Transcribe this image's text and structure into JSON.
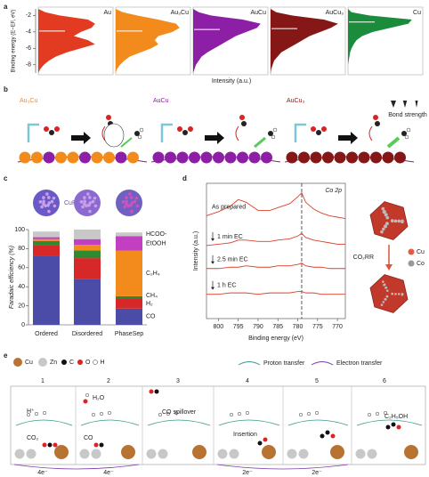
{
  "panel_labels": [
    "a",
    "b",
    "c",
    "d",
    "e"
  ],
  "chart_data": [
    {
      "type": "area",
      "y_label": "Binding energy (E−EF, eV)",
      "x_label": "Intensity (a.u.)",
      "y": [
        -1.2,
        -1.6,
        -2,
        -2.5,
        -3,
        -3.5,
        -4,
        -4.5,
        -5,
        -5.5,
        -6,
        -6.5,
        -7,
        -7.5,
        -8,
        -8.5,
        -9
      ],
      "xlim": [
        0,
        1
      ],
      "ylim": [
        -1.2,
        -9
      ],
      "yticks": [
        -2,
        -4,
        -6,
        -8
      ],
      "series": [
        {
          "name": "Au",
          "color": "#e23b22",
          "d_band_center": -3.9,
          "values": [
            0,
            0.1,
            0.3,
            0.7,
            0.8,
            0.75,
            0.6,
            0.5,
            0.7,
            0.8,
            0.6,
            0.4,
            0.25,
            0.15,
            0.08,
            0.03,
            0
          ]
        },
        {
          "name": "Au₃Cu",
          "color": "#f28a1c",
          "d_band_center": -3.9,
          "values": [
            0,
            0.1,
            0.3,
            0.6,
            0.85,
            0.9,
            0.8,
            0.6,
            0.55,
            0.6,
            0.5,
            0.35,
            0.2,
            0.12,
            0.06,
            0.02,
            0
          ]
        },
        {
          "name": "AuCu",
          "color": "#8c1fa6",
          "d_band_center": -3.7,
          "values": [
            0,
            0.08,
            0.25,
            0.7,
            0.95,
            0.9,
            0.75,
            0.6,
            0.5,
            0.4,
            0.3,
            0.2,
            0.12,
            0.08,
            0.04,
            0.02,
            0
          ]
        },
        {
          "name": "AuCu₃",
          "color": "#861717",
          "d_band_center": -3.6,
          "values": [
            0,
            0.08,
            0.3,
            0.75,
            0.95,
            0.85,
            0.7,
            0.55,
            0.45,
            0.35,
            0.25,
            0.15,
            0.1,
            0.05,
            0.03,
            0.01,
            0
          ]
        },
        {
          "name": "Cu",
          "color": "#1a8c3c",
          "d_band_center": -2.8,
          "values": [
            0,
            0.05,
            0.3,
            0.9,
            0.85,
            0.6,
            0.35,
            0.2,
            0.12,
            0.08,
            0.05,
            0.03,
            0.02,
            0.01,
            0,
            0,
            0
          ]
        }
      ]
    },
    {
      "type": "stacked_bar",
      "y_label": "Faradaic efficiency (%)",
      "annotation": "CuPd",
      "categories": [
        "Ordered",
        "Disordered",
        "PhaseSep"
      ],
      "ylim": [
        0,
        100
      ],
      "yticks": [
        0,
        20,
        40,
        60,
        80,
        100
      ],
      "series": [
        {
          "name": "CO",
          "color": "#4b4ba8",
          "values": [
            72,
            48,
            17
          ]
        },
        {
          "name": "H₂",
          "color": "#d62828",
          "values": [
            12,
            22,
            11
          ]
        },
        {
          "name": "CH₄",
          "color": "#2f8a2f",
          "values": [
            4,
            8,
            2
          ]
        },
        {
          "name": "C₂H₄",
          "color": "#f28a1c",
          "values": [
            2,
            6,
            48
          ]
        },
        {
          "name": "EtOOH",
          "color": "#c23fc2",
          "values": [
            2,
            6,
            15
          ]
        },
        {
          "name": "HCOO-",
          "color": "#c8c8c8",
          "values": [
            6,
            10,
            4
          ]
        }
      ]
    },
    {
      "type": "line",
      "x_label": "Binding energy (eV)",
      "y_label": "Intensity (a.u.)",
      "annotation": "Co 2p",
      "x": [
        803,
        800,
        797,
        795,
        793,
        790,
        787,
        785,
        782,
        780,
        779,
        778,
        776,
        774,
        772,
        770,
        768
      ],
      "xlim": [
        803,
        768
      ],
      "xticks": [
        800,
        795,
        790,
        785,
        780,
        775,
        770
      ],
      "ylim": [
        0,
        10
      ],
      "dashed_line_x": 779,
      "series": [
        {
          "name": "As prepared",
          "color": "#d9412a",
          "values": [
            7.6,
            7.9,
            8.3,
            8.8,
            8.6,
            8.0,
            8.0,
            8.2,
            8.5,
            9.0,
            9.3,
            8.6,
            8.1,
            7.8,
            7.6,
            7.5,
            7.4
          ]
        },
        {
          "name": "1 min EC",
          "color": "#d9412a",
          "values": [
            5.4,
            5.5,
            5.6,
            5.8,
            5.8,
            5.7,
            5.7,
            5.8,
            5.9,
            6.1,
            6.3,
            6.0,
            5.8,
            5.7,
            5.6,
            5.5,
            5.5
          ]
        },
        {
          "name": "2.5 min EC",
          "color": "#d9412a",
          "values": [
            3.7,
            3.7,
            3.8,
            3.8,
            3.9,
            3.8,
            3.8,
            3.9,
            3.9,
            4.0,
            4.1,
            3.9,
            3.8,
            3.8,
            3.7,
            3.7,
            3.7
          ]
        },
        {
          "name": "1 h EC",
          "color": "#d9412a",
          "values": [
            1.8,
            1.8,
            1.9,
            1.9,
            1.9,
            1.8,
            1.9,
            1.9,
            1.9,
            2.0,
            2.0,
            1.9,
            1.9,
            1.8,
            1.8,
            1.8,
            1.8
          ]
        }
      ]
    }
  ],
  "scheme_b": {
    "alloys": [
      "Au₃Cu",
      "AuCu",
      "AuCu₃"
    ],
    "bond_strength": "Bond strength"
  },
  "inset_d": {
    "reaction": "CO₂RR",
    "legend": [
      "Cu",
      "Co"
    ]
  },
  "scheme_e": {
    "legend": [
      "Cu",
      "Zn",
      "C",
      "O",
      "H"
    ],
    "transfers": [
      "Proton transfer",
      "Electron transfer"
    ],
    "steps": [
      "1",
      "2",
      "3",
      "4",
      "5",
      "6"
    ],
    "species": [
      "H⁺",
      "CO₂",
      "H₂O",
      "CO",
      "CO spillover",
      "Insertion",
      "C₂H₅OH"
    ],
    "electrons": [
      "4e⁻",
      "4e⁻",
      "2e⁻",
      "2e⁻"
    ]
  }
}
